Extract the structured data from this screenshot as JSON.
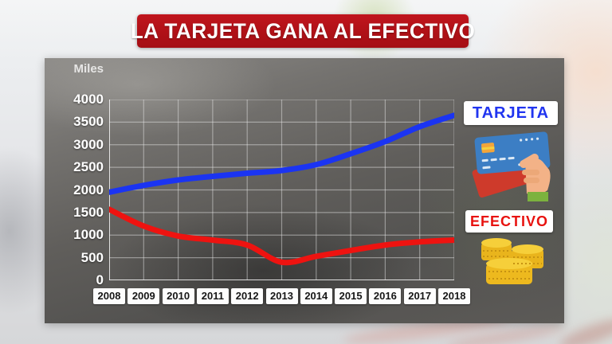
{
  "title_banner": {
    "text": "LA TARJETA GANA AL EFECTIVO",
    "bg_color": "#b01117",
    "text_color": "#ffffff"
  },
  "chart_data": {
    "type": "line",
    "x": [
      2008,
      2009,
      2010,
      2011,
      2012,
      2013,
      2014,
      2015,
      2016,
      2017,
      2018
    ],
    "series": [
      {
        "name": "TARJETA",
        "color": "#1b34f2",
        "values": [
          1950,
          2100,
          2220,
          2300,
          2370,
          2430,
          2560,
          2800,
          3070,
          3400,
          3650
        ]
      },
      {
        "name": "EFECTIVO",
        "color": "#ee1310",
        "values": [
          1570,
          1200,
          980,
          890,
          780,
          400,
          530,
          660,
          780,
          850,
          890
        ]
      }
    ],
    "title": "LA TARJETA GANA AL EFECTIVO",
    "xlabel": "",
    "ylabel": "Miles",
    "ylim": [
      0,
      4000
    ],
    "ytick_step": 500,
    "grid": true,
    "legend_position": "right"
  },
  "legend": {
    "tarjeta": {
      "label": "TARJETA",
      "color": "#2135f0",
      "icon": "credit-card-icon"
    },
    "efectivo": {
      "label": "EFECTIVO",
      "color": "#e8120f",
      "icon": "coins-icon"
    }
  }
}
